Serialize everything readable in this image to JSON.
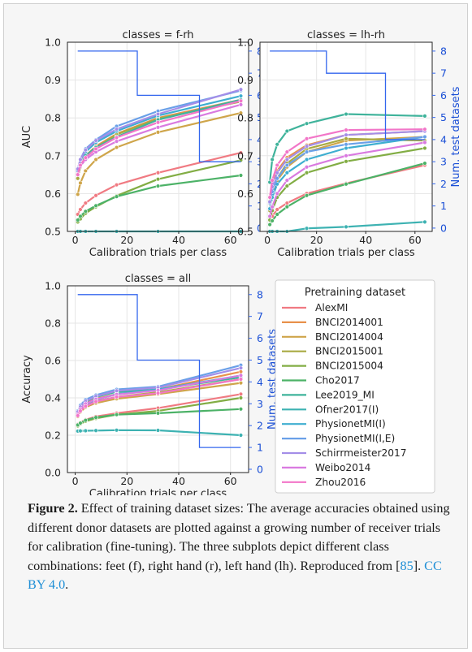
{
  "colors": {
    "AlexMI": "#f07a82",
    "BNCI2014001": "#e8914c",
    "BNCI2014004": "#cfa54a",
    "BNCI2015001": "#a9aa42",
    "BNCI2015004": "#82ad44",
    "Cho2017": "#4cb267",
    "Lee2019_MI": "#3fb39b",
    "Ofner2017(I)": "#3db2b2",
    "PhysionetMI(I)": "#3eaed0",
    "PhysionetMI(I,E)": "#6aa0e8",
    "Schirrmeister2017": "#a48ee8",
    "Weibo2014": "#d97ae0",
    "Zhou2016": "#f276c8",
    "test_datasets": "#3366ee",
    "right_axis_text": "#1a4fd6"
  },
  "chart_data": [
    {
      "type": "line",
      "title": "classes = f-rh",
      "xlabel": "Calibration trials per class",
      "ylabel": "AUC",
      "y2label": "Num. test datasets",
      "x": [
        1,
        2,
        4,
        8,
        16,
        32,
        64
      ],
      "xlim": [
        -3,
        67
      ],
      "ylim": [
        0.5,
        1.0
      ],
      "y2lim": [
        -0.15,
        8.4
      ],
      "xticks": [
        0,
        20,
        40,
        60
      ],
      "yticks": [
        0.5,
        0.6,
        0.7,
        0.8,
        0.9,
        1.0
      ],
      "y2ticks": [
        0,
        1,
        2,
        3,
        4,
        5,
        6,
        7,
        8
      ],
      "grid": true,
      "series": [
        {
          "name": "AlexMI",
          "values": [
            0.545,
            0.558,
            0.575,
            0.595,
            0.623,
            0.655,
            0.708
          ]
        },
        {
          "name": "BNCI2014001",
          "values": [
            0.66,
            0.682,
            0.7,
            0.725,
            0.758,
            0.8,
            0.848
          ]
        },
        {
          "name": "BNCI2014004",
          "values": [
            0.598,
            0.628,
            0.66,
            0.69,
            0.722,
            0.762,
            0.813
          ]
        },
        {
          "name": "BNCI2015001",
          "values": [
            0.64,
            0.67,
            0.698,
            0.722,
            0.756,
            0.798,
            0.843
          ]
        },
        {
          "name": "BNCI2015004",
          "values": [
            0.525,
            0.533,
            0.548,
            0.565,
            0.594,
            0.638,
            0.688
          ]
        },
        {
          "name": "Cho2017",
          "values": [
            0.53,
            0.54,
            0.553,
            0.568,
            0.592,
            0.62,
            0.648
          ]
        },
        {
          "name": "Lee2019_MI",
          "values": [
            0.652,
            0.678,
            0.7,
            0.722,
            0.75,
            0.795,
            0.848
          ]
        },
        {
          "name": "Ofner2017(I)",
          "values": [
            0.5,
            0.5,
            0.5,
            0.5,
            0.5,
            0.5,
            0.5
          ]
        },
        {
          "name": "PhysionetMI(I)",
          "values": [
            0.66,
            0.688,
            0.71,
            0.735,
            0.765,
            0.806,
            0.858
          ]
        },
        {
          "name": "PhysionetMI(I,E)",
          "values": [
            0.66,
            0.69,
            0.718,
            0.742,
            0.778,
            0.818,
            0.872
          ]
        },
        {
          "name": "Schirrmeister2017",
          "values": [
            0.665,
            0.69,
            0.715,
            0.74,
            0.77,
            0.81,
            0.875
          ]
        },
        {
          "name": "Weibo2014",
          "values": [
            0.652,
            0.672,
            0.69,
            0.71,
            0.738,
            0.775,
            0.835
          ]
        },
        {
          "name": "Zhou2016",
          "values": [
            0.65,
            0.675,
            0.695,
            0.718,
            0.748,
            0.788,
            0.845
          ]
        }
      ],
      "test_datasets": {
        "x": [
          1,
          24,
          24,
          48,
          48,
          64
        ],
        "values": [
          8,
          8,
          6,
          6,
          3,
          3
        ]
      }
    },
    {
      "type": "line",
      "title": "classes = lh-rh",
      "xlabel": "Calibration trials per class",
      "ylabel": "",
      "y2label": "Num. test datasets",
      "x": [
        1,
        2,
        4,
        8,
        16,
        32,
        64
      ],
      "xlim": [
        -3,
        67
      ],
      "ylim": [
        0.5,
        1.0
      ],
      "y2lim": [
        -0.15,
        8.4
      ],
      "xticks": [
        0,
        20,
        40,
        60
      ],
      "yticks": [
        0.5,
        0.6,
        0.7,
        0.8,
        0.9,
        1.0
      ],
      "y2ticks": [
        0,
        1,
        2,
        3,
        4,
        5,
        6,
        7,
        8
      ],
      "grid": true,
      "series": [
        {
          "name": "AlexMI",
          "values": [
            0.532,
            0.54,
            0.558,
            0.575,
            0.6,
            0.627,
            0.675
          ]
        },
        {
          "name": "BNCI2014001",
          "values": [
            0.58,
            0.62,
            0.66,
            0.695,
            0.728,
            0.755,
            0.765
          ]
        },
        {
          "name": "BNCI2014004",
          "values": [
            0.56,
            0.595,
            0.635,
            0.67,
            0.71,
            0.74,
            0.75
          ]
        },
        {
          "name": "BNCI2015001",
          "values": [
            0.555,
            0.595,
            0.64,
            0.68,
            0.718,
            0.745,
            0.74
          ]
        },
        {
          "name": "BNCI2015004",
          "values": [
            0.53,
            0.555,
            0.59,
            0.62,
            0.655,
            0.685,
            0.72
          ]
        },
        {
          "name": "Cho2017",
          "values": [
            0.518,
            0.528,
            0.545,
            0.565,
            0.595,
            0.625,
            0.68
          ]
        },
        {
          "name": "Lee2019_MI",
          "values": [
            0.63,
            0.69,
            0.73,
            0.765,
            0.785,
            0.81,
            0.805
          ]
        },
        {
          "name": "Ofner2017(I)",
          "values": [
            0.5,
            0.5,
            0.5,
            0.5,
            0.508,
            0.512,
            0.525
          ]
        },
        {
          "name": "PhysionetMI(I)",
          "values": [
            0.56,
            0.59,
            0.625,
            0.655,
            0.69,
            0.72,
            0.75
          ]
        },
        {
          "name": "PhysionetMI(I,E)",
          "values": [
            0.575,
            0.605,
            0.64,
            0.675,
            0.71,
            0.73,
            0.75
          ]
        },
        {
          "name": "Schirrmeister2017",
          "values": [
            0.578,
            0.618,
            0.655,
            0.69,
            0.725,
            0.755,
            0.765
          ]
        },
        {
          "name": "Weibo2014",
          "values": [
            0.54,
            0.565,
            0.6,
            0.635,
            0.67,
            0.7,
            0.735
          ]
        },
        {
          "name": "Zhou2016",
          "values": [
            0.59,
            0.635,
            0.675,
            0.71,
            0.745,
            0.768,
            0.77
          ]
        }
      ],
      "test_datasets": {
        "x": [
          1,
          24,
          24,
          48,
          48,
          64
        ],
        "values": [
          8,
          8,
          7,
          7,
          4,
          4
        ]
      }
    },
    {
      "type": "line",
      "title": "classes = all",
      "xlabel": "Calibration trials per class",
      "ylabel": "Accuracy",
      "y2label": "Num. test datasets",
      "x": [
        1,
        2,
        4,
        8,
        16,
        32,
        64
      ],
      "xlim": [
        -3,
        67
      ],
      "ylim": [
        0.0,
        1.0
      ],
      "y2lim": [
        -0.15,
        8.4
      ],
      "xticks": [
        0,
        20,
        40,
        60
      ],
      "yticks": [
        0.0,
        0.2,
        0.4,
        0.6,
        0.8,
        1.0
      ],
      "y2ticks": [
        0,
        1,
        2,
        3,
        4,
        5,
        6,
        7,
        8
      ],
      "grid": true,
      "series": [
        {
          "name": "AlexMI",
          "values": [
            0.258,
            0.268,
            0.283,
            0.3,
            0.318,
            0.345,
            0.42
          ]
        },
        {
          "name": "BNCI2014001",
          "values": [
            0.318,
            0.345,
            0.372,
            0.395,
            0.42,
            0.445,
            0.54
          ]
        },
        {
          "name": "BNCI2014004",
          "values": [
            0.3,
            0.325,
            0.35,
            0.372,
            0.395,
            0.42,
            0.48
          ]
        },
        {
          "name": "BNCI2015001",
          "values": [
            0.305,
            0.332,
            0.36,
            0.382,
            0.405,
            0.43,
            0.5
          ]
        },
        {
          "name": "BNCI2015004",
          "values": [
            0.25,
            0.26,
            0.275,
            0.29,
            0.31,
            0.33,
            0.4
          ]
        },
        {
          "name": "Cho2017",
          "values": [
            0.255,
            0.265,
            0.28,
            0.295,
            0.31,
            0.318,
            0.34
          ]
        },
        {
          "name": "Lee2019_MI",
          "values": [
            0.32,
            0.35,
            0.38,
            0.405,
            0.432,
            0.445,
            0.51
          ]
        },
        {
          "name": "Ofner2017(I)",
          "values": [
            0.222,
            0.223,
            0.224,
            0.225,
            0.227,
            0.226,
            0.2
          ]
        },
        {
          "name": "PhysionetMI(I)",
          "values": [
            0.31,
            0.338,
            0.365,
            0.39,
            0.42,
            0.445,
            0.52
          ]
        },
        {
          "name": "PhysionetMI(I,E)",
          "values": [
            0.33,
            0.36,
            0.39,
            0.415,
            0.445,
            0.46,
            0.575
          ]
        },
        {
          "name": "Schirrmeister2017",
          "values": [
            0.325,
            0.352,
            0.382,
            0.408,
            0.438,
            0.455,
            0.56
          ]
        },
        {
          "name": "Weibo2014",
          "values": [
            0.312,
            0.34,
            0.368,
            0.392,
            0.418,
            0.44,
            0.52
          ]
        },
        {
          "name": "Zhou2016",
          "values": [
            0.305,
            0.33,
            0.355,
            0.38,
            0.405,
            0.425,
            0.5
          ]
        }
      ],
      "test_datasets": {
        "x": [
          1,
          24,
          24,
          48,
          48,
          64
        ],
        "values": [
          8,
          8,
          5,
          5,
          1,
          1
        ]
      }
    }
  ],
  "legend": {
    "title": "Pretraining dataset",
    "entries": [
      "AlexMI",
      "BNCI2014001",
      "BNCI2014004",
      "BNCI2015001",
      "BNCI2015004",
      "Cho2017",
      "Lee2019_MI",
      "Ofner2017(I)",
      "PhysionetMI(I)",
      "PhysionetMI(I,E)",
      "Schirrmeister2017",
      "Weibo2014",
      "Zhou2016"
    ]
  },
  "caption": {
    "label": "Figure 2.",
    "text": " Effect of training dataset sizes: The average accuracies obtained using different donor datasets are plotted against a growing number of receiver trials for calibration (fine-tuning). The three subplots depict different class combinations: feet (f), right hand (r), left hand (lh). Reproduced from [",
    "ref": "85",
    "mid": "]. ",
    "license": "CC BY 4.0",
    "end": "."
  }
}
